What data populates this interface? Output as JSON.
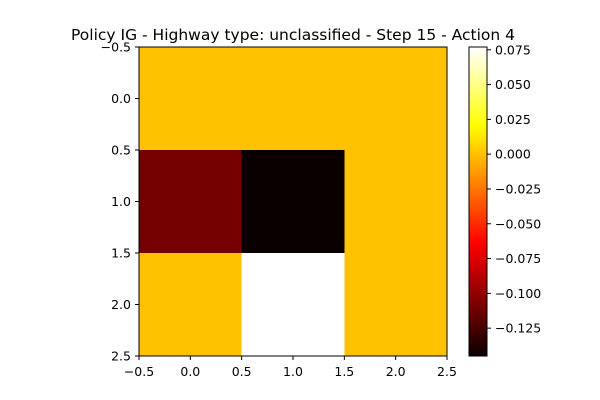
{
  "chart_data": {
    "type": "heatmap",
    "title": "Policy IG - Highway type: unclassified - Step 15 - Action 4",
    "xlabel": "",
    "ylabel": "",
    "colormap": "hot",
    "xlim": [
      -0.5,
      2.5
    ],
    "ylim": [
      2.5,
      -0.5
    ],
    "y_inverted": true,
    "x_ticks": [
      -0.5,
      0.0,
      0.5,
      1.0,
      1.5,
      2.0,
      2.5
    ],
    "x_tick_labels": [
      "−0.5",
      "0.0",
      "0.5",
      "1.0",
      "1.5",
      "2.0",
      "2.5"
    ],
    "y_ticks": [
      -0.5,
      0.0,
      0.5,
      1.0,
      1.5,
      2.0,
      2.5
    ],
    "y_tick_labels": [
      "−0.5",
      "0.0",
      "0.5",
      "1.0",
      "1.5",
      "2.0",
      "2.5"
    ],
    "values": [
      [
        0.0,
        0.0,
        0.0
      ],
      [
        -0.11,
        -0.145,
        0.0
      ],
      [
        0.0,
        0.077,
        0.0
      ]
    ],
    "colorbar": {
      "vmin": -0.145,
      "vmax": 0.077,
      "ticks": [
        0.075,
        0.05,
        0.025,
        0.0,
        -0.025,
        -0.05,
        -0.075,
        -0.1,
        -0.125
      ],
      "tick_labels": [
        "0.075",
        "0.050",
        "0.025",
        "0.000",
        "−0.025",
        "−0.050",
        "−0.075",
        "−0.100",
        "−0.125"
      ]
    },
    "grid": false
  }
}
